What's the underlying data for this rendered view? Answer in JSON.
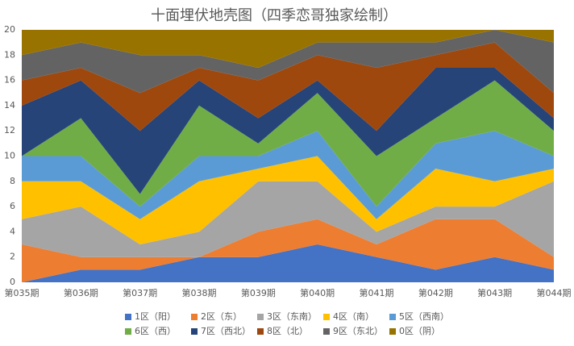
{
  "chart_data": {
    "type": "stacked-area",
    "title": "十面埋伏地壳图（四季恋哥独家绘制）",
    "categories": [
      "第035期",
      "第036期",
      "第037期",
      "第038期",
      "第039期",
      "第040期",
      "第041期",
      "第042期",
      "第043期",
      "第044期"
    ],
    "series": [
      {
        "name": "1区（阳）",
        "color": "#4472c4",
        "values": [
          0,
          1,
          1,
          2,
          2,
          3,
          2,
          1,
          2,
          1
        ]
      },
      {
        "name": "2区（东）",
        "color": "#ed7d31",
        "values": [
          3,
          1,
          1,
          0,
          2,
          2,
          1,
          4,
          3,
          1
        ]
      },
      {
        "name": "3区（东南）",
        "color": "#a5a5a5",
        "values": [
          2,
          4,
          1,
          2,
          4,
          3,
          1,
          1,
          1,
          6
        ]
      },
      {
        "name": "4区（南）",
        "color": "#ffc000",
        "values": [
          3,
          2,
          2,
          4,
          1,
          2,
          1,
          3,
          2,
          1
        ]
      },
      {
        "name": "5区（西南）",
        "color": "#5b9bd5",
        "values": [
          2,
          2,
          1,
          2,
          1,
          2,
          1,
          2,
          4,
          1
        ]
      },
      {
        "name": "6区（西）",
        "color": "#70ad47",
        "values": [
          0,
          3,
          1,
          4,
          1,
          3,
          4,
          2,
          4,
          2
        ]
      },
      {
        "name": "7区（西北）",
        "color": "#264478",
        "values": [
          4,
          3,
          5,
          2,
          2,
          1,
          2,
          4,
          1,
          1
        ]
      },
      {
        "name": "8区（北）",
        "color": "#9e480e",
        "values": [
          2,
          1,
          3,
          1,
          3,
          2,
          5,
          1,
          2,
          2
        ]
      },
      {
        "name": "9区（东北）",
        "color": "#636363",
        "values": [
          2,
          2,
          3,
          1,
          1,
          1,
          2,
          1,
          1,
          4
        ]
      },
      {
        "name": "0区（阴）",
        "color": "#997300",
        "values": [
          2,
          1,
          2,
          2,
          3,
          1,
          1,
          1,
          0,
          1
        ]
      }
    ],
    "ylim": [
      0,
      20
    ],
    "yticks": [
      0,
      2,
      4,
      6,
      8,
      10,
      12,
      14,
      16,
      18,
      20
    ]
  }
}
